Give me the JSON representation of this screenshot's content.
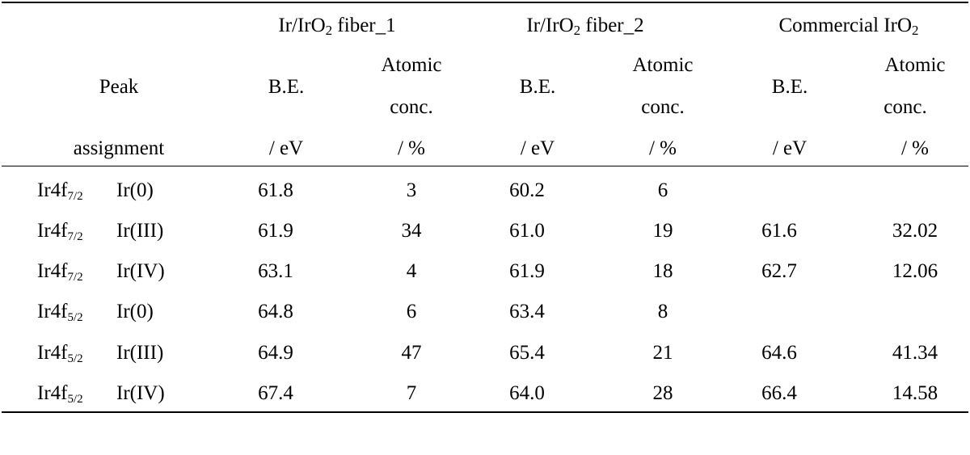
{
  "table": {
    "groups": [
      {
        "prefix": "Ir/IrO",
        "sub": "2",
        "suffix": " fiber_1"
      },
      {
        "prefix": "Ir/IrO",
        "sub": "2",
        "suffix": " fiber_2"
      },
      {
        "prefix": "Commercial IrO",
        "sub": "2",
        "suffix": ""
      }
    ],
    "peak_label": {
      "line1": "Peak",
      "line2": "assignment"
    },
    "be_label": {
      "line1": "B.E.",
      "line2": "/ eV"
    },
    "ac_label": {
      "line1": "Atomic",
      "line2": "conc.",
      "line3": "/ %"
    },
    "rows": [
      {
        "orbital": "Ir4f",
        "sub": "7/2",
        "state": "Ir(0)",
        "v": [
          "61.8",
          "3",
          "60.2",
          "6",
          "",
          ""
        ]
      },
      {
        "orbital": "Ir4f",
        "sub": "7/2",
        "state": "Ir(III)",
        "v": [
          "61.9",
          "34",
          "61.0",
          "19",
          "61.6",
          "32.02"
        ]
      },
      {
        "orbital": "Ir4f",
        "sub": "7/2",
        "state": "Ir(IV)",
        "v": [
          "63.1",
          "4",
          "61.9",
          "18",
          "62.7",
          "12.06"
        ]
      },
      {
        "orbital": "Ir4f",
        "sub": "5/2",
        "state": "Ir(0)",
        "v": [
          "64.8",
          "6",
          "63.4",
          "8",
          "",
          ""
        ]
      },
      {
        "orbital": "Ir4f",
        "sub": "5/2",
        "state": "Ir(III)",
        "v": [
          "64.9",
          "47",
          "65.4",
          "21",
          "64.6",
          "41.34"
        ]
      },
      {
        "orbital": "Ir4f",
        "sub": "5/2",
        "state": "Ir(IV)",
        "v": [
          "67.4",
          "7",
          "64.0",
          "28",
          "66.4",
          "14.58"
        ]
      }
    ]
  }
}
